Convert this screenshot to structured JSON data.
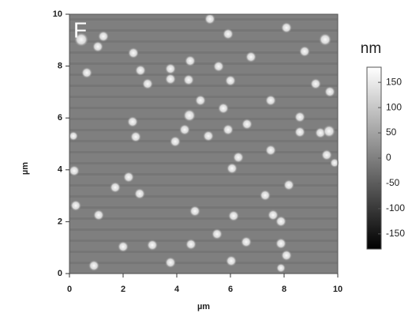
{
  "chart_data": {
    "type": "image",
    "panel_label": "F",
    "xlabel": "µm",
    "ylabel": "µm",
    "xlim": [
      0,
      10
    ],
    "ylim": [
      0,
      10
    ],
    "xticks": [
      0,
      2,
      4,
      6,
      8,
      10
    ],
    "yticks": [
      0,
      2,
      4,
      6,
      8,
      10
    ],
    "colorbar": {
      "label": "nm",
      "lim": [
        -180,
        180
      ],
      "ticks": [
        150,
        100,
        50,
        0,
        -50,
        -100,
        -150
      ],
      "colors": [
        "#000000",
        "#ffffff"
      ]
    }
  }
}
